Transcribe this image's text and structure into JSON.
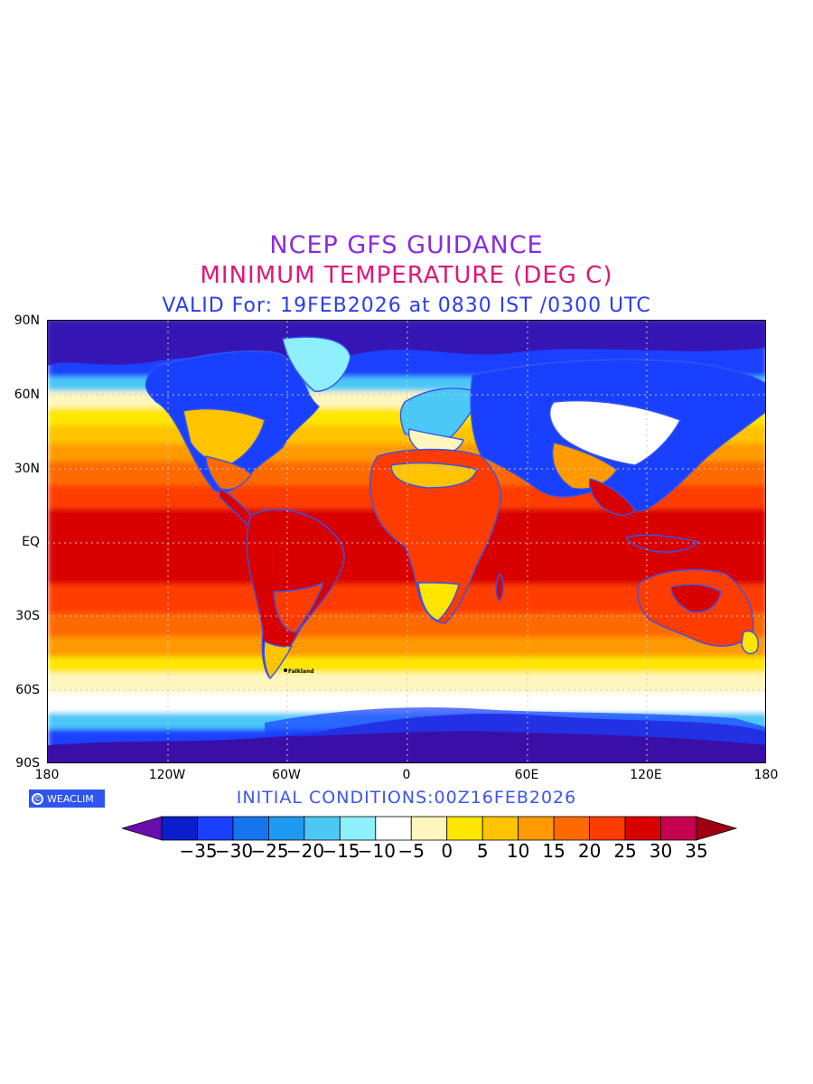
{
  "title": {
    "line1": "NCEP GFS GUIDANCE",
    "line2": "MINIMUM TEMPERATURE (DEG C)",
    "line3": "VALID For: 19FEB2026 at 0830 IST /0300 UTC"
  },
  "map": {
    "lat_ticks": [
      "90N",
      "60N",
      "30N",
      "EQ",
      "30S",
      "60S",
      "90S"
    ],
    "lon_ticks": [
      "180",
      "120W",
      "60W",
      "0",
      "60E",
      "120E",
      "180"
    ],
    "place_labels": [
      "Falkland"
    ],
    "colors": {
      "land_border": "#3355ee",
      "gridline": "#c8c8c8"
    }
  },
  "footer": {
    "logo_text": "WEACLIM",
    "logo_icon": "copyright-circle-icon",
    "initial_conditions": "INITIAL CONDITIONS:00Z16FEB2026"
  },
  "legend": {
    "labels": [
      "-35",
      "-30",
      "-25",
      "-20",
      "-15",
      "-10",
      "-5",
      "0",
      "5",
      "10",
      "15",
      "20",
      "25",
      "30",
      "35"
    ],
    "colors": [
      "#6a0dad",
      "#0a1ecc",
      "#1a40ff",
      "#1574ee",
      "#1e9bf0",
      "#4cc8f7",
      "#8ef0fc",
      "#ffffff",
      "#fff6be",
      "#ffe600",
      "#ffc300",
      "#ff9a00",
      "#ff6a00",
      "#ff3c00",
      "#d90000",
      "#c4004f",
      "#a00010"
    ]
  }
}
